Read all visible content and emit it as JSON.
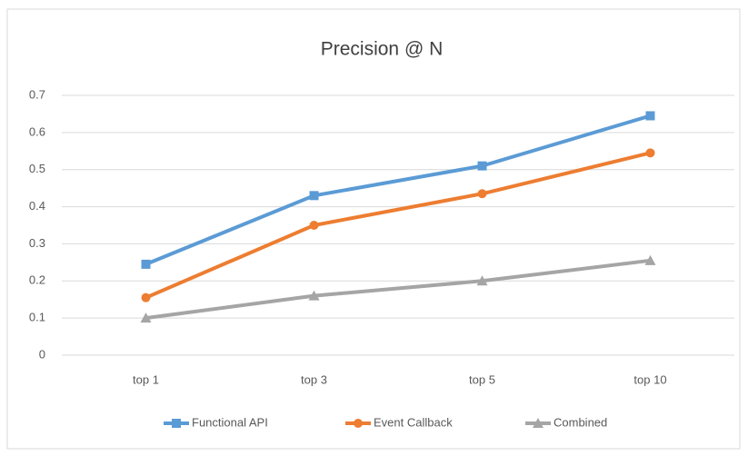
{
  "chart_data": {
    "type": "line",
    "title": "Precision @ N",
    "categories": [
      "top 1",
      "top 3",
      "top 5",
      "top 10"
    ],
    "series": [
      {
        "name": "Functional API",
        "color": "#5b9bd5",
        "marker": "square",
        "values": [
          0.245,
          0.43,
          0.51,
          0.645
        ]
      },
      {
        "name": "Event Callback",
        "color": "#ed7d31",
        "marker": "circle",
        "values": [
          0.155,
          0.35,
          0.435,
          0.545
        ]
      },
      {
        "name": "Combined",
        "color": "#a5a5a5",
        "marker": "triangle",
        "values": [
          0.1,
          0.16,
          0.2,
          0.255
        ]
      }
    ],
    "ylim": [
      0,
      0.7
    ],
    "yticks": [
      0,
      0.1,
      0.2,
      0.3,
      0.4,
      0.5,
      0.6,
      0.7
    ],
    "grid": true,
    "legend": "bottom"
  }
}
